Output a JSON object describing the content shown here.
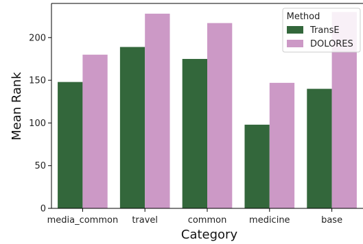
{
  "chart_data": {
    "type": "bar",
    "categories": [
      "media_common",
      "travel",
      "common",
      "medicine",
      "base"
    ],
    "series": [
      {
        "name": "TransE",
        "color": "#33673b",
        "values": [
          148,
          189,
          175,
          98,
          140
        ]
      },
      {
        "name": "DOLORES",
        "color": "#cc99c6",
        "values": [
          180,
          228,
          217,
          147,
          230
        ]
      }
    ],
    "xlabel": "Category",
    "ylabel": "Mean Rank",
    "ylim": [
      0,
      240
    ],
    "yticks": [
      0,
      50,
      100,
      150,
      200
    ],
    "grid": false,
    "legend": {
      "title": "Method",
      "position": "top-right"
    }
  }
}
